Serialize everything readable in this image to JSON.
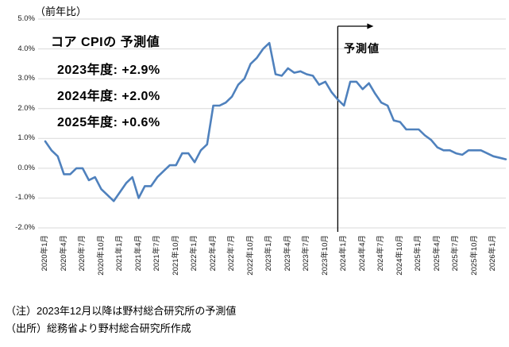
{
  "axis_unit_label": "（前年比）",
  "annotation": {
    "title": "コア CPIの 予測値",
    "lines": [
      "2023年度: +2.9%",
      "2024年度: +2.0%",
      "2025年度: +0.6%"
    ]
  },
  "forecast_label": "予測値",
  "notes": [
    "（注）2023年12月以降は野村総合研究所の予測値",
    "（出所）総務省より野村総合研究所作成"
  ],
  "colors": {
    "line": "#4f81bd",
    "grid": "#d9d9d9",
    "divider": "#000000",
    "background": "#ffffff"
  },
  "chart_data": {
    "type": "line",
    "title": "",
    "ylabel": "（前年比）",
    "ylim": [
      -2.0,
      5.0
    ],
    "ytick_step": 1.0,
    "ytick_labels": [
      "5.0%",
      "4.0%",
      "3.0%",
      "2.0%",
      "1.0%",
      "0.0%",
      "-1.0%",
      "-2.0%"
    ],
    "grid": true,
    "legend": "none",
    "xtick_labels": [
      "2020年1月",
      "2020年4月",
      "2020年7月",
      "2020年10月",
      "2021年1月",
      "2021年4月",
      "2021年7月",
      "2021年10月",
      "2022年1月",
      "2022年4月",
      "2022年7月",
      "2022年10月",
      "2023年1月",
      "2023年4月",
      "2023年7月",
      "2023年10月",
      "2024年1月",
      "2024年4月",
      "2024年7月",
      "2024年10月",
      "2025年1月",
      "2025年4月",
      "2025年7月",
      "2025年10月",
      "2026年1月"
    ],
    "xtick_month_interval": 3,
    "x": [
      "2020-01",
      "2020-02",
      "2020-03",
      "2020-04",
      "2020-05",
      "2020-06",
      "2020-07",
      "2020-08",
      "2020-09",
      "2020-10",
      "2020-11",
      "2020-12",
      "2021-01",
      "2021-02",
      "2021-03",
      "2021-04",
      "2021-05",
      "2021-06",
      "2021-07",
      "2021-08",
      "2021-09",
      "2021-10",
      "2021-11",
      "2021-12",
      "2022-01",
      "2022-02",
      "2022-03",
      "2022-04",
      "2022-05",
      "2022-06",
      "2022-07",
      "2022-08",
      "2022-09",
      "2022-10",
      "2022-11",
      "2022-12",
      "2023-01",
      "2023-02",
      "2023-03",
      "2023-04",
      "2023-05",
      "2023-06",
      "2023-07",
      "2023-08",
      "2023-09",
      "2023-10",
      "2023-11",
      "2023-12",
      "2024-01",
      "2024-02",
      "2024-03",
      "2024-04",
      "2024-05",
      "2024-06",
      "2024-07",
      "2024-08",
      "2024-09",
      "2024-10",
      "2024-11",
      "2024-12",
      "2025-01",
      "2025-02",
      "2025-03",
      "2025-04",
      "2025-05",
      "2025-06",
      "2025-07",
      "2025-08",
      "2025-09",
      "2025-10",
      "2025-11",
      "2025-12",
      "2026-01",
      "2026-02",
      "2026-03"
    ],
    "values": [
      0.9,
      0.6,
      0.4,
      -0.2,
      -0.2,
      0.0,
      0.0,
      -0.4,
      -0.3,
      -0.7,
      -0.9,
      -1.1,
      -0.8,
      -0.5,
      -0.3,
      -1.0,
      -0.6,
      -0.6,
      -0.3,
      -0.1,
      0.1,
      0.1,
      0.5,
      0.5,
      0.2,
      0.6,
      0.8,
      2.1,
      2.1,
      2.2,
      2.4,
      2.8,
      3.0,
      3.5,
      3.7,
      4.0,
      4.2,
      3.15,
      3.1,
      3.35,
      3.2,
      3.25,
      3.15,
      3.1,
      2.8,
      2.9,
      2.55,
      2.3,
      2.1,
      2.9,
      2.9,
      2.65,
      2.85,
      2.5,
      2.2,
      2.1,
      1.6,
      1.55,
      1.3,
      1.3,
      1.3,
      1.1,
      0.95,
      0.7,
      0.6,
      0.6,
      0.5,
      0.45,
      0.6,
      0.6,
      0.6,
      0.5,
      0.4,
      0.35,
      0.3
    ],
    "forecast_start_index": 47,
    "forecast_divider_label": "予測値"
  }
}
